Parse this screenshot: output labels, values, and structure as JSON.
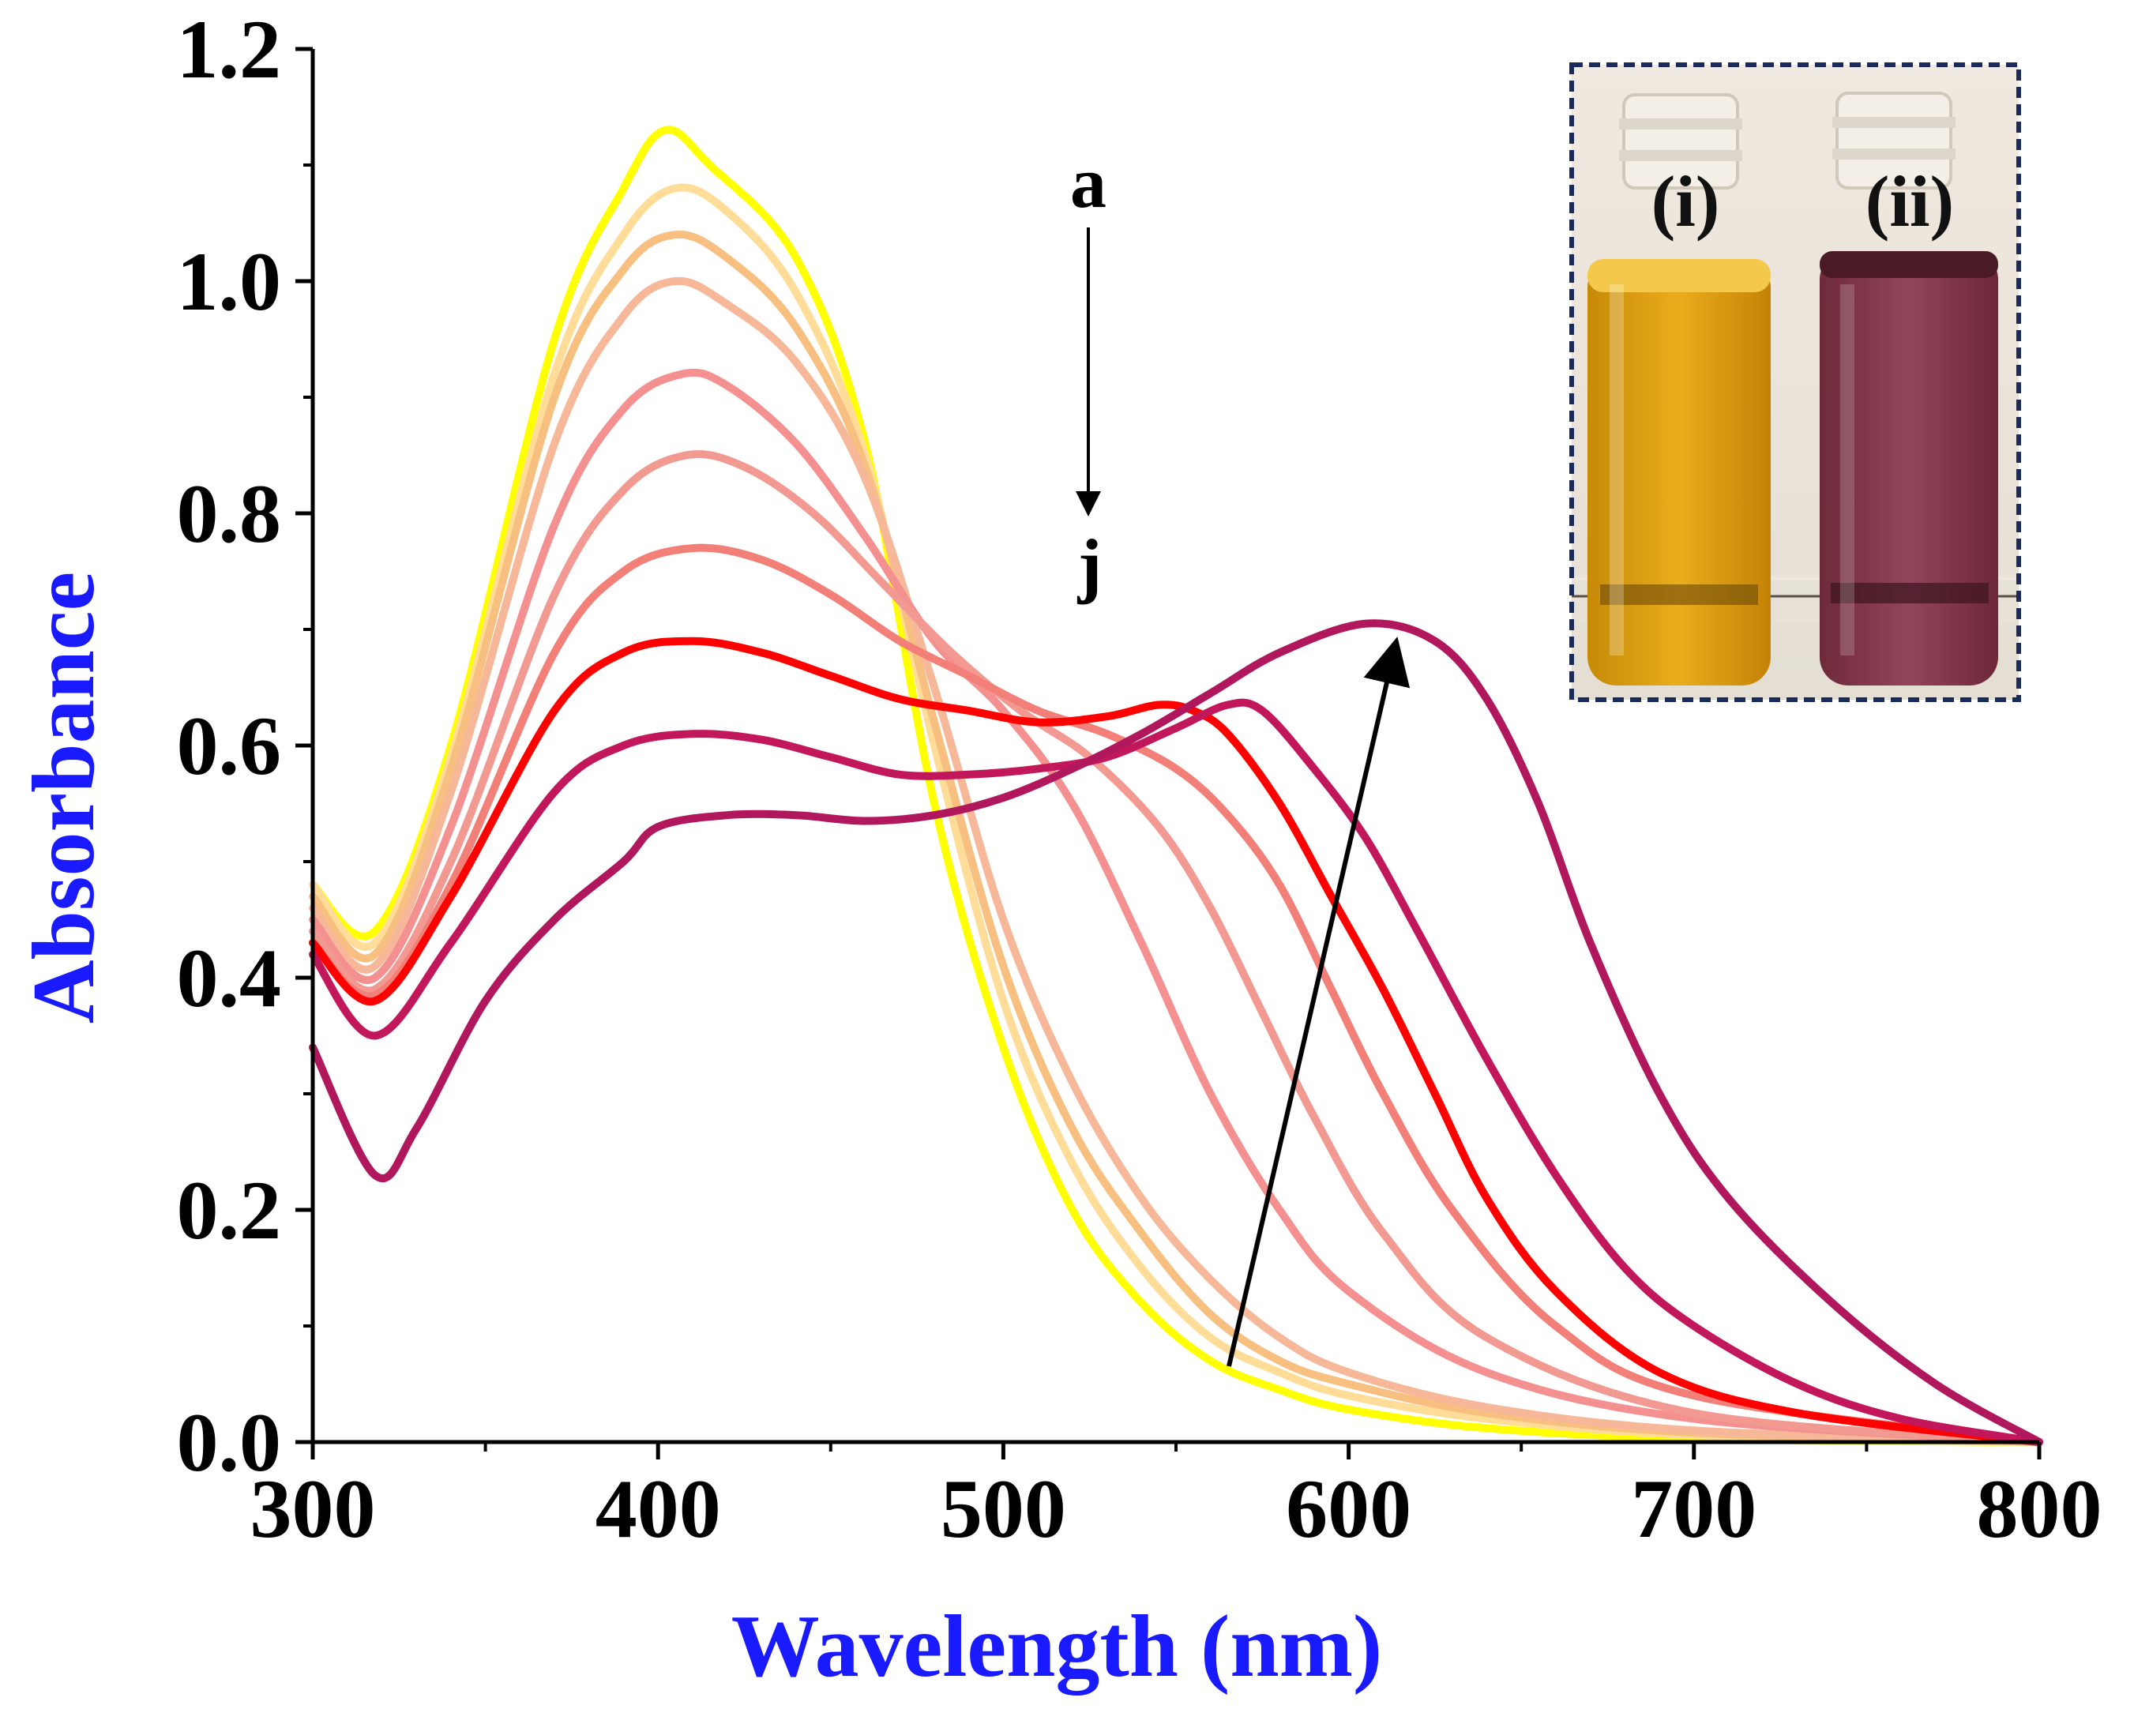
{
  "chart_data": {
    "type": "line",
    "xlabel": "Wavelength (nm)",
    "ylabel": "Absorbance",
    "xlim": [
      300,
      800
    ],
    "ylim": [
      0,
      1.2
    ],
    "x_ticks": [
      "300",
      "400",
      "500",
      "600",
      "700",
      "800"
    ],
    "y_ticks": [
      "0.0",
      "0.2",
      "0.4",
      "0.6",
      "0.8",
      "1.0",
      "1.2"
    ],
    "grid": false,
    "label_color": "#1a1aff",
    "annotations": {
      "arrow_start_label": "a",
      "arrow_end_label": "j",
      "inset_labels": [
        "(i)",
        "(ii)"
      ]
    },
    "series": [
      {
        "color": "#ffff00",
        "values": [
          [
            300,
            0.48
          ],
          [
            318,
            0.44
          ],
          [
            340,
            0.6
          ],
          [
            370,
            0.95
          ],
          [
            390,
            1.08
          ],
          [
            402,
            1.13
          ],
          [
            415,
            1.1
          ],
          [
            440,
            1.02
          ],
          [
            460,
            0.86
          ],
          [
            480,
            0.55
          ],
          [
            500,
            0.34
          ],
          [
            520,
            0.2
          ],
          [
            540,
            0.12
          ],
          [
            560,
            0.07
          ],
          [
            580,
            0.045
          ],
          [
            600,
            0.028
          ],
          [
            640,
            0.012
          ],
          [
            700,
            0.003
          ],
          [
            800,
            0.0
          ]
        ]
      },
      {
        "color": "#ffdd99",
        "values": [
          [
            300,
            0.48
          ],
          [
            318,
            0.43
          ],
          [
            340,
            0.59
          ],
          [
            370,
            0.92
          ],
          [
            390,
            1.04
          ],
          [
            405,
            1.08
          ],
          [
            420,
            1.06
          ],
          [
            440,
            0.99
          ],
          [
            460,
            0.85
          ],
          [
            480,
            0.6
          ],
          [
            500,
            0.38
          ],
          [
            520,
            0.24
          ],
          [
            540,
            0.15
          ],
          [
            560,
            0.09
          ],
          [
            580,
            0.06
          ],
          [
            600,
            0.04
          ],
          [
            640,
            0.02
          ],
          [
            700,
            0.006
          ],
          [
            800,
            0.0
          ]
        ]
      },
      {
        "color": "#f8c080",
        "values": [
          [
            300,
            0.47
          ],
          [
            318,
            0.42
          ],
          [
            340,
            0.58
          ],
          [
            370,
            0.9
          ],
          [
            390,
            1.01
          ],
          [
            405,
            1.04
          ],
          [
            420,
            1.02
          ],
          [
            440,
            0.96
          ],
          [
            460,
            0.84
          ],
          [
            480,
            0.62
          ],
          [
            500,
            0.41
          ],
          [
            520,
            0.27
          ],
          [
            540,
            0.18
          ],
          [
            560,
            0.11
          ],
          [
            580,
            0.07
          ],
          [
            600,
            0.05
          ],
          [
            640,
            0.025
          ],
          [
            700,
            0.008
          ],
          [
            800,
            0.0
          ]
        ]
      },
      {
        "color": "#f7b89a",
        "values": [
          [
            300,
            0.46
          ],
          [
            318,
            0.41
          ],
          [
            340,
            0.56
          ],
          [
            370,
            0.86
          ],
          [
            390,
            0.97
          ],
          [
            405,
            1.0
          ],
          [
            420,
            0.98
          ],
          [
            440,
            0.93
          ],
          [
            460,
            0.83
          ],
          [
            480,
            0.65
          ],
          [
            500,
            0.45
          ],
          [
            520,
            0.31
          ],
          [
            540,
            0.21
          ],
          [
            560,
            0.14
          ],
          [
            580,
            0.09
          ],
          [
            600,
            0.06
          ],
          [
            640,
            0.03
          ],
          [
            700,
            0.01
          ],
          [
            800,
            0.0
          ]
        ]
      },
      {
        "color": "#f49090",
        "values": [
          [
            300,
            0.45
          ],
          [
            318,
            0.4
          ],
          [
            340,
            0.53
          ],
          [
            370,
            0.79
          ],
          [
            390,
            0.89
          ],
          [
            407,
            0.92
          ],
          [
            420,
            0.91
          ],
          [
            440,
            0.86
          ],
          [
            460,
            0.78
          ],
          [
            480,
            0.69
          ],
          [
            500,
            0.63
          ],
          [
            520,
            0.55
          ],
          [
            540,
            0.43
          ],
          [
            560,
            0.3
          ],
          [
            580,
            0.2
          ],
          [
            600,
            0.13
          ],
          [
            640,
            0.06
          ],
          [
            700,
            0.02
          ],
          [
            800,
            0.0
          ]
        ]
      },
      {
        "color": "#f29a92",
        "values": [
          [
            300,
            0.44
          ],
          [
            318,
            0.39
          ],
          [
            340,
            0.5
          ],
          [
            370,
            0.73
          ],
          [
            390,
            0.82
          ],
          [
            408,
            0.85
          ],
          [
            425,
            0.84
          ],
          [
            445,
            0.8
          ],
          [
            465,
            0.74
          ],
          [
            485,
            0.68
          ],
          [
            505,
            0.63
          ],
          [
            525,
            0.59
          ],
          [
            545,
            0.53
          ],
          [
            560,
            0.46
          ],
          [
            575,
            0.37
          ],
          [
            590,
            0.28
          ],
          [
            610,
            0.18
          ],
          [
            640,
            0.09
          ],
          [
            700,
            0.025
          ],
          [
            800,
            0.0
          ]
        ]
      },
      {
        "color": "#f27f78",
        "values": [
          [
            300,
            0.43
          ],
          [
            318,
            0.385
          ],
          [
            340,
            0.48
          ],
          [
            370,
            0.68
          ],
          [
            390,
            0.75
          ],
          [
            410,
            0.77
          ],
          [
            430,
            0.76
          ],
          [
            450,
            0.73
          ],
          [
            470,
            0.69
          ],
          [
            490,
            0.66
          ],
          [
            510,
            0.63
          ],
          [
            530,
            0.61
          ],
          [
            550,
            0.58
          ],
          [
            565,
            0.54
          ],
          [
            580,
            0.48
          ],
          [
            595,
            0.39
          ],
          [
            610,
            0.3
          ],
          [
            630,
            0.2
          ],
          [
            660,
            0.1
          ],
          [
            700,
            0.04
          ],
          [
            800,
            0.0
          ]
        ]
      },
      {
        "color": "#ff0000",
        "values": [
          [
            300,
            0.43
          ],
          [
            318,
            0.38
          ],
          [
            340,
            0.47
          ],
          [
            370,
            0.63
          ],
          [
            390,
            0.68
          ],
          [
            410,
            0.69
          ],
          [
            430,
            0.68
          ],
          [
            450,
            0.66
          ],
          [
            470,
            0.64
          ],
          [
            490,
            0.63
          ],
          [
            510,
            0.62
          ],
          [
            530,
            0.625
          ],
          [
            545,
            0.635
          ],
          [
            555,
            0.63
          ],
          [
            565,
            0.61
          ],
          [
            580,
            0.55
          ],
          [
            595,
            0.47
          ],
          [
            610,
            0.39
          ],
          [
            625,
            0.3
          ],
          [
            640,
            0.21
          ],
          [
            660,
            0.13
          ],
          [
            690,
            0.06
          ],
          [
            730,
            0.025
          ],
          [
            800,
            0.0
          ]
        ]
      },
      {
        "color": "#c2185b",
        "values": [
          [
            300,
            0.42
          ],
          [
            318,
            0.35
          ],
          [
            340,
            0.43
          ],
          [
            370,
            0.56
          ],
          [
            390,
            0.6
          ],
          [
            410,
            0.61
          ],
          [
            430,
            0.605
          ],
          [
            450,
            0.59
          ],
          [
            470,
            0.575
          ],
          [
            490,
            0.575
          ],
          [
            510,
            0.58
          ],
          [
            530,
            0.59
          ],
          [
            550,
            0.615
          ],
          [
            565,
            0.635
          ],
          [
            575,
            0.63
          ],
          [
            590,
            0.58
          ],
          [
            605,
            0.52
          ],
          [
            620,
            0.44
          ],
          [
            640,
            0.33
          ],
          [
            660,
            0.23
          ],
          [
            680,
            0.15
          ],
          [
            700,
            0.1
          ],
          [
            730,
            0.05
          ],
          [
            760,
            0.02
          ],
          [
            800,
            0.0
          ]
        ]
      },
      {
        "color": "#b0175c",
        "values": [
          [
            300,
            0.34
          ],
          [
            318,
            0.23
          ],
          [
            330,
            0.27
          ],
          [
            350,
            0.38
          ],
          [
            370,
            0.45
          ],
          [
            390,
            0.5
          ],
          [
            400,
            0.53
          ],
          [
            420,
            0.54
          ],
          [
            440,
            0.54
          ],
          [
            460,
            0.535
          ],
          [
            480,
            0.54
          ],
          [
            500,
            0.555
          ],
          [
            520,
            0.58
          ],
          [
            540,
            0.61
          ],
          [
            560,
            0.645
          ],
          [
            580,
            0.68
          ],
          [
            605,
            0.705
          ],
          [
            625,
            0.69
          ],
          [
            640,
            0.64
          ],
          [
            655,
            0.55
          ],
          [
            670,
            0.43
          ],
          [
            690,
            0.3
          ],
          [
            710,
            0.21
          ],
          [
            740,
            0.12
          ],
          [
            770,
            0.05
          ],
          [
            800,
            0.0
          ]
        ]
      }
    ]
  }
}
